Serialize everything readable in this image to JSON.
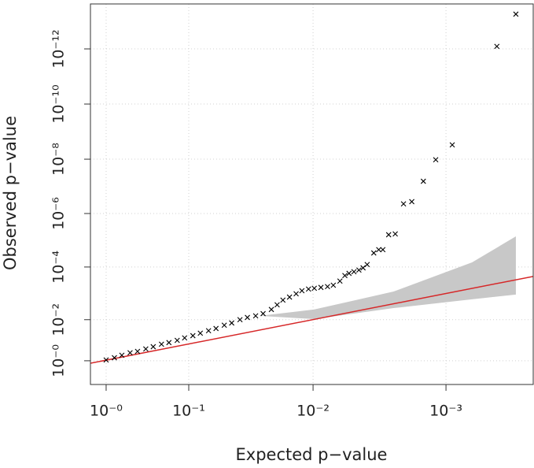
{
  "chart_data": {
    "type": "scatter",
    "x_label": "Expected p−value",
    "y_label": "Observed p−value",
    "xlim": [
      -0.19,
      5.17
    ],
    "ylim": [
      -0.86,
      12.94
    ],
    "xticks": [
      {
        "value": 0,
        "label": "10⁻⁰"
      },
      {
        "value": 1,
        "label": "10⁻¹"
      },
      {
        "value": 2.505,
        "label": "10⁻²"
      },
      {
        "value": 4.114,
        "label": "10⁻³"
      }
    ],
    "yticks": [
      {
        "value": 0,
        "label": "10⁻⁰"
      },
      {
        "value": 1.49,
        "label": "10⁻²"
      },
      {
        "value": 3.4,
        "label": "10⁻⁴"
      },
      {
        "value": 5.34,
        "label": "10⁻⁶"
      },
      {
        "value": 7.31,
        "label": "10⁻⁸"
      },
      {
        "value": 9.31,
        "label": "10⁻¹⁰"
      },
      {
        "value": 11.31,
        "label": "10⁻¹²"
      }
    ],
    "grid": true,
    "color": "#000000",
    "x": [
      0,
      0.1,
      0.19,
      0.29,
      0.38,
      0.48,
      0.57,
      0.67,
      0.76,
      0.86,
      0.95,
      1.05,
      1.14,
      1.24,
      1.33,
      1.43,
      1.52,
      1.62,
      1.71,
      1.81,
      1.9,
      2,
      2.07,
      2.14,
      2.22,
      2.3,
      2.37,
      2.45,
      2.52,
      2.6,
      2.68,
      2.75,
      2.83,
      2.89,
      2.94,
      3,
      3.06,
      3.11,
      3.16,
      3.24,
      3.3,
      3.35,
      3.42,
      3.5,
      3.6,
      3.7,
      3.84,
      3.99,
      4.19,
      4.73,
      4.96
    ],
    "values": [
      0.03,
      0.11,
      0.2,
      0.29,
      0.34,
      0.43,
      0.51,
      0.6,
      0.66,
      0.74,
      0.83,
      0.91,
      1,
      1.09,
      1.17,
      1.29,
      1.37,
      1.49,
      1.57,
      1.63,
      1.71,
      1.86,
      2.03,
      2.2,
      2.31,
      2.43,
      2.54,
      2.6,
      2.63,
      2.66,
      2.69,
      2.74,
      2.89,
      3.09,
      3.17,
      3.23,
      3.29,
      3.37,
      3.49,
      3.91,
      4.03,
      4.03,
      4.57,
      4.6,
      5.69,
      5.77,
      6.51,
      7.29,
      7.83,
      11.4,
      12.57
    ],
    "reference_line": {
      "color": "#d62728",
      "x": [
        -0.19,
        5.17
      ],
      "y": [
        -0.09,
        3.06
      ]
    },
    "confidence_band": {
      "color": "#c8c8c8",
      "x": [
        1.86,
        2.52,
        3.48,
        4.43,
        4.96
      ],
      "lower": [
        1.63,
        1.51,
        1.91,
        2.23,
        2.4
      ],
      "upper": [
        1.63,
        1.86,
        2.51,
        3.57,
        4.51
      ]
    }
  }
}
